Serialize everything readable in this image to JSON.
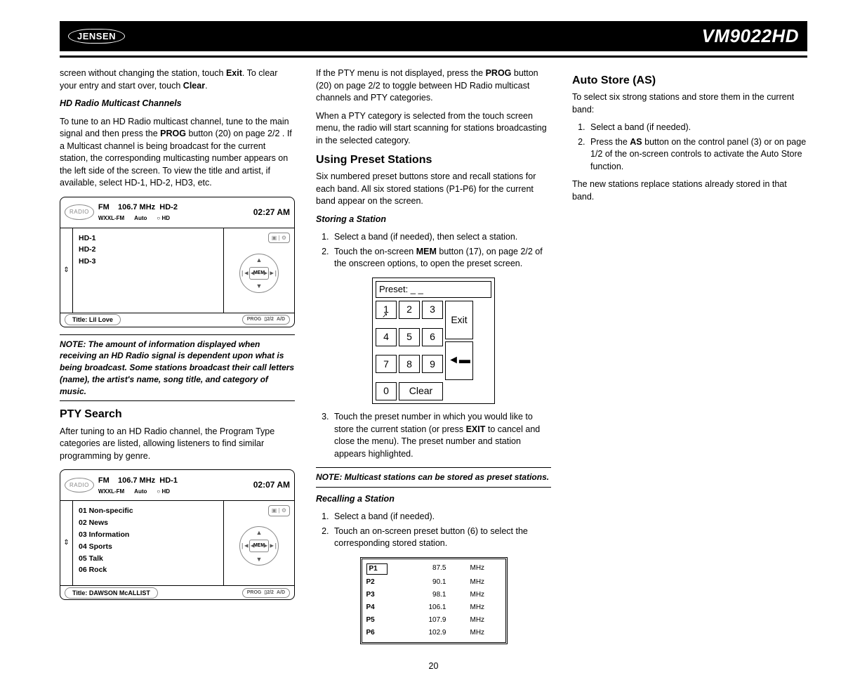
{
  "header": {
    "brand": "JENSEN",
    "model": "VM9022HD"
  },
  "col1": {
    "p1a": "screen without changing the station, touch ",
    "p1b": "Exit",
    "p1c": ". To clear your entry and start over, touch ",
    "p1d": "Clear",
    "p1e": ".",
    "sub1": "HD Radio Multicast Channels",
    "p2a": "To tune to an HD Radio multicast channel, tune to the main signal and then press the ",
    "p2b": "PROG",
    "p2c": " button (20) on page 2/2 . If a Multicast channel is being broadcast for the current station, the corresponding multicasting number appears on the left side of the screen. To view the title and artist, if available, select HD-1, HD-2, HD3, etc.",
    "note1": "NOTE: The amount of information displayed when receiving an HD Radio signal is dependent upon what is being broadcast. Some stations broadcast their call letters (name), the artist's name, song title, and category of music.",
    "h_pty": "PTY Search",
    "p_pty": "After tuning to an HD Radio channel, the Program Type categories are listed, allowing listeners to find similar programming by genre."
  },
  "fig1": {
    "time": "02:27 AM",
    "band": "FM",
    "freq": "106.7 MHz",
    "hd": "HD-2",
    "station": "WXXL-FM",
    "auto": "Auto",
    "hdlabel": "○ HD",
    "list": [
      "HD-1",
      "HD-2",
      "HD-3"
    ],
    "title": "Title: Lil Love",
    "mem": "MEM",
    "btns": [
      "PROG",
      "▯2/2",
      "A/D"
    ]
  },
  "fig2": {
    "time": "02:07 AM",
    "band": "FM",
    "freq": "106.7 MHz",
    "hd": "HD-1",
    "station": "WXXL-FM",
    "auto": "Auto",
    "hdlabel": "○ HD",
    "list": [
      "01  Non-specific",
      "02  News",
      "03  Information",
      "04  Sports",
      "05  Talk",
      "06  Rock"
    ],
    "title": "Title: DAWSON McALLIST",
    "mem": "MEM",
    "btns": [
      "PROG",
      "▯2/2",
      "A/D"
    ]
  },
  "col2": {
    "p1a": "If the PTY menu is not displayed, press the ",
    "p1b": "PROG",
    "p1c": " button (20) on page 2/2 to toggle between HD Radio multicast channels and PTY categories.",
    "p2": "When a PTY category is selected from the touch screen menu, the radio will start scanning for stations broadcasting in the selected category.",
    "h_preset": "Using Preset Stations",
    "p_preset": "Six numbered preset buttons store and recall stations for each band. All six stored stations (P1-P6) for the current band appear on the screen.",
    "sub_store": "Storing a Station",
    "s1": "Select a band (if needed), then select a station.",
    "s2a": "Touch the on-screen ",
    "s2b": "MEM",
    "s2c": " button (17), on page 2/2 of the onscreen options, to open the preset screen.",
    "s3a": "Touch the preset number in which you would like to store the current station (or press ",
    "s3b": "EXIT",
    "s3c": " to cancel and close the menu). The preset number and station appears highlighted.",
    "note2": "NOTE: Multicast stations can be stored as preset stations.",
    "sub_recall": "Recalling a Station",
    "r1": "Select a band (if needed).",
    "r2": "Touch an on-screen preset button (6) to select the corresponding stored station."
  },
  "keypad": {
    "label": "Preset: _ _",
    "nums": [
      "1",
      "2",
      "3",
      "4",
      "5",
      "6",
      "7",
      "8",
      "9"
    ],
    "exit": "Exit",
    "enter": "◄▬",
    "zero": "0",
    "clear": "Clear"
  },
  "presets": {
    "rows": [
      {
        "p": "P1",
        "f": "87.5",
        "u": "MHz",
        "sel": true
      },
      {
        "p": "P2",
        "f": "90.1",
        "u": "MHz"
      },
      {
        "p": "P3",
        "f": "98.1",
        "u": "MHz"
      },
      {
        "p": "P4",
        "f": "106.1",
        "u": "MHz"
      },
      {
        "p": "P5",
        "f": "107.9",
        "u": "MHz"
      },
      {
        "p": "P6",
        "f": "102.9",
        "u": "MHz"
      }
    ]
  },
  "col3": {
    "h_as": "Auto Store (AS)",
    "p_as": "To select six strong stations and store them in the current band:",
    "a1": "Select a band (if needed).",
    "a2a": "Press the ",
    "a2b": "AS",
    "a2c": " button on the control panel (3) or on page 1/2 of the on-screen controls to activate the Auto Store function.",
    "p_end": "The new stations replace stations already stored in that band."
  },
  "page": "20"
}
